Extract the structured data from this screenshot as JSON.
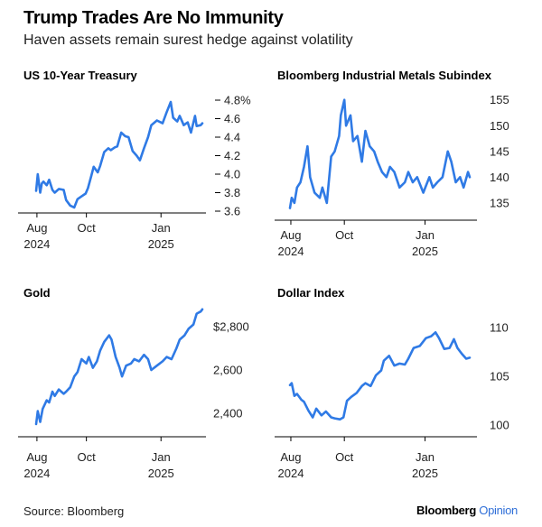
{
  "header": {
    "title": "Trump Trades Are No Immunity",
    "subtitle": "Haven assets remain surest hedge against volatility"
  },
  "footer": {
    "source": "Source: Bloomberg",
    "brand_main": "Bloomberg",
    "brand_accent": "Opinion"
  },
  "colors": {
    "line": "#2f7ae5",
    "text": "#000000",
    "accent": "#2f6fd8"
  },
  "chart_data": [
    {
      "type": "line",
      "title": "US 10-Year Treasury",
      "x_ticks": [
        {
          "label": "Aug",
          "sub": "2024",
          "date": "2024-08-01"
        },
        {
          "label": "Oct",
          "sub": "",
          "date": "2024-10-01"
        },
        {
          "label": "Jan",
          "sub": "2025",
          "date": "2025-01-01"
        }
      ],
      "y_ticks": [
        {
          "value": 4.8,
          "label": "4.8%"
        },
        {
          "value": 4.6,
          "label": "4.6"
        },
        {
          "value": 4.4,
          "label": "4.4"
        },
        {
          "value": 4.2,
          "label": "4.2"
        },
        {
          "value": 4.0,
          "label": "4.0"
        },
        {
          "value": 3.8,
          "label": "3.8"
        },
        {
          "value": 3.6,
          "label": "3.6"
        }
      ],
      "ylim": [
        3.6,
        4.8
      ],
      "series": [
        {
          "x": [
            "2024-07-31",
            "2024-08-02",
            "2024-08-05",
            "2024-08-07",
            "2024-08-09",
            "2024-08-13",
            "2024-08-16",
            "2024-08-20",
            "2024-08-23",
            "2024-08-28",
            "2024-09-03",
            "2024-09-06",
            "2024-09-11",
            "2024-09-16",
            "2024-09-20",
            "2024-09-25",
            "2024-09-30",
            "2024-10-03",
            "2024-10-07",
            "2024-10-10",
            "2024-10-15",
            "2024-10-18",
            "2024-10-23",
            "2024-10-28",
            "2024-10-31",
            "2024-11-05",
            "2024-11-08",
            "2024-11-13",
            "2024-11-18",
            "2024-11-22",
            "2024-11-27",
            "2024-12-02",
            "2024-12-06",
            "2024-12-11",
            "2024-12-16",
            "2024-12-20",
            "2024-12-27",
            "2025-01-03",
            "2025-01-08",
            "2025-01-13",
            "2025-01-16",
            "2025-01-21",
            "2025-01-24",
            "2025-01-29",
            "2025-02-03",
            "2025-02-07",
            "2025-02-12",
            "2025-02-14",
            "2025-02-19",
            "2025-02-21"
          ],
          "values": [
            3.82,
            4.0,
            3.8,
            3.9,
            3.92,
            3.88,
            3.94,
            3.83,
            3.8,
            3.84,
            3.83,
            3.72,
            3.66,
            3.64,
            3.73,
            3.76,
            3.79,
            3.85,
            3.98,
            4.08,
            4.02,
            4.09,
            4.24,
            4.28,
            4.26,
            4.29,
            4.3,
            4.45,
            4.41,
            4.4,
            4.25,
            4.2,
            4.15,
            4.28,
            4.4,
            4.53,
            4.58,
            4.55,
            4.67,
            4.78,
            4.61,
            4.57,
            4.63,
            4.53,
            4.56,
            4.45,
            4.63,
            4.52,
            4.53,
            4.55
          ]
        }
      ]
    },
    {
      "type": "line",
      "title": "Bloomberg Industrial Metals Subindex",
      "x_ticks": [
        {
          "label": "Aug",
          "sub": "2024",
          "date": "2024-08-01"
        },
        {
          "label": "Oct",
          "sub": "",
          "date": "2024-10-01"
        },
        {
          "label": "Jan",
          "sub": "2025",
          "date": "2025-01-01"
        }
      ],
      "y_ticks": [
        {
          "value": 155,
          "label": "155"
        },
        {
          "value": 150,
          "label": "150"
        },
        {
          "value": 145,
          "label": "145"
        },
        {
          "value": 140,
          "label": "140"
        },
        {
          "value": 135,
          "label": "135"
        }
      ],
      "ylim": [
        132,
        156
      ],
      "series": [
        {
          "x": [
            "2024-07-31",
            "2024-08-02",
            "2024-08-05",
            "2024-08-08",
            "2024-08-12",
            "2024-08-16",
            "2024-08-20",
            "2024-08-23",
            "2024-08-28",
            "2024-09-03",
            "2024-09-06",
            "2024-09-11",
            "2024-09-16",
            "2024-09-20",
            "2024-09-25",
            "2024-09-27",
            "2024-10-01",
            "2024-10-03",
            "2024-10-08",
            "2024-10-11",
            "2024-10-16",
            "2024-10-21",
            "2024-10-25",
            "2024-10-30",
            "2024-11-04",
            "2024-11-08",
            "2024-11-13",
            "2024-11-18",
            "2024-11-22",
            "2024-11-27",
            "2024-12-03",
            "2024-12-09",
            "2024-12-13",
            "2024-12-18",
            "2024-12-23",
            "2024-12-30",
            "2025-01-06",
            "2025-01-10",
            "2025-01-15",
            "2025-01-21",
            "2025-01-27",
            "2025-01-31",
            "2025-02-05",
            "2025-02-10",
            "2025-02-14",
            "2025-02-19",
            "2025-02-21"
          ],
          "values": [
            134,
            136,
            135,
            138,
            139,
            142,
            146,
            140,
            137,
            136,
            138,
            135,
            144,
            145,
            148,
            152,
            155,
            150,
            152,
            147,
            148,
            143,
            149,
            146,
            145,
            143,
            141,
            140,
            142,
            141,
            138,
            139,
            141,
            139,
            140,
            137,
            140,
            138,
            139,
            140,
            145,
            143,
            139,
            140,
            138,
            141,
            140
          ]
        }
      ]
    },
    {
      "type": "line",
      "title": "Gold",
      "x_ticks": [
        {
          "label": "Aug",
          "sub": "2024",
          "date": "2024-08-01"
        },
        {
          "label": "Oct",
          "sub": "",
          "date": "2024-10-01"
        },
        {
          "label": "Jan",
          "sub": "2025",
          "date": "2025-01-01"
        }
      ],
      "y_ticks": [
        {
          "value": 2800,
          "label": "$2,800"
        },
        {
          "value": 2600,
          "label": "2,600"
        },
        {
          "value": 2400,
          "label": "2,400"
        }
      ],
      "ylim": [
        2300,
        2850
      ],
      "series": [
        {
          "x": [
            "2024-07-31",
            "2024-08-02",
            "2024-08-05",
            "2024-08-08",
            "2024-08-13",
            "2024-08-16",
            "2024-08-20",
            "2024-08-23",
            "2024-08-28",
            "2024-09-03",
            "2024-09-06",
            "2024-09-11",
            "2024-09-16",
            "2024-09-20",
            "2024-09-25",
            "2024-10-01",
            "2024-10-04",
            "2024-10-09",
            "2024-10-14",
            "2024-10-18",
            "2024-10-23",
            "2024-10-29",
            "2024-11-01",
            "2024-11-06",
            "2024-11-11",
            "2024-11-14",
            "2024-11-19",
            "2024-11-25",
            "2024-11-29",
            "2024-12-05",
            "2024-12-11",
            "2024-12-16",
            "2024-12-20",
            "2024-12-27",
            "2025-01-03",
            "2025-01-08",
            "2025-01-14",
            "2025-01-20",
            "2025-01-24",
            "2025-01-30",
            "2025-02-04",
            "2025-02-10",
            "2025-02-14",
            "2025-02-19",
            "2025-02-21"
          ],
          "values": [
            2350,
            2410,
            2360,
            2420,
            2460,
            2450,
            2500,
            2480,
            2510,
            2490,
            2500,
            2520,
            2570,
            2590,
            2650,
            2630,
            2660,
            2610,
            2640,
            2690,
            2730,
            2760,
            2740,
            2660,
            2610,
            2570,
            2620,
            2630,
            2650,
            2640,
            2670,
            2650,
            2600,
            2620,
            2640,
            2660,
            2650,
            2700,
            2740,
            2760,
            2790,
            2810,
            2860,
            2870,
            2880
          ]
        }
      ]
    },
    {
      "type": "line",
      "title": "Dollar Index",
      "x_ticks": [
        {
          "label": "Aug",
          "sub": "2024",
          "date": "2024-08-01"
        },
        {
          "label": "Oct",
          "sub": "",
          "date": "2024-10-01"
        },
        {
          "label": "Jan",
          "sub": "2025",
          "date": "2025-01-01"
        }
      ],
      "y_ticks": [
        {
          "value": 110,
          "label": "110"
        },
        {
          "value": 105,
          "label": "105"
        },
        {
          "value": 100,
          "label": "100"
        }
      ],
      "ylim": [
        99,
        111
      ],
      "series": [
        {
          "x": [
            "2024-07-31",
            "2024-08-02",
            "2024-08-05",
            "2024-08-08",
            "2024-08-13",
            "2024-08-16",
            "2024-08-21",
            "2024-08-26",
            "2024-08-30",
            "2024-09-05",
            "2024-09-10",
            "2024-09-16",
            "2024-09-20",
            "2024-09-26",
            "2024-09-30",
            "2024-10-04",
            "2024-10-09",
            "2024-10-15",
            "2024-10-21",
            "2024-10-25",
            "2024-10-31",
            "2024-11-06",
            "2024-11-12",
            "2024-11-15",
            "2024-11-21",
            "2024-11-27",
            "2024-12-03",
            "2024-12-09",
            "2024-12-13",
            "2024-12-19",
            "2024-12-26",
            "2025-01-02",
            "2025-01-08",
            "2025-01-13",
            "2025-01-17",
            "2025-01-23",
            "2025-01-29",
            "2025-02-03",
            "2025-02-07",
            "2025-02-12",
            "2025-02-17",
            "2025-02-21"
          ],
          "values": [
            104.1,
            104.3,
            103.0,
            103.2,
            102.6,
            102.4,
            101.5,
            100.8,
            101.7,
            101.0,
            101.4,
            100.8,
            100.7,
            100.6,
            100.8,
            102.5,
            102.9,
            103.3,
            104.0,
            104.3,
            104.0,
            105.1,
            105.6,
            106.6,
            107.1,
            106.1,
            106.3,
            106.2,
            106.8,
            107.9,
            108.1,
            108.9,
            109.1,
            109.5,
            108.9,
            107.8,
            107.9,
            108.8,
            107.9,
            107.3,
            106.8,
            106.9
          ]
        }
      ]
    }
  ]
}
